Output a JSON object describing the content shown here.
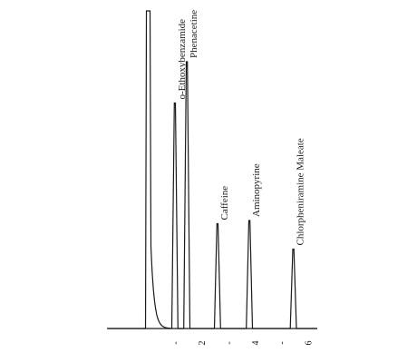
{
  "chart_data": {
    "type": "line",
    "title": "",
    "xlabel": "",
    "ylabel": "",
    "x_axis": {
      "range": [
        -1.6,
        6.3
      ],
      "ticks": [
        {
          "value": 1,
          "label": "-"
        },
        {
          "value": 2,
          "label": "2"
        },
        {
          "value": 3,
          "label": "-"
        },
        {
          "value": 4,
          "label": "4"
        },
        {
          "value": 5,
          "label": "-"
        },
        {
          "value": 6,
          "label": "6"
        }
      ]
    },
    "y_range": [
      0,
      1
    ],
    "grid": false,
    "legend": "none",
    "solvent_front": {
      "x": -0.05,
      "height": 1.0
    },
    "peaks": [
      {
        "name": "o-Ethoxybenzamide",
        "x": 0.95,
        "height": 0.71
      },
      {
        "name": "Phenacetine",
        "x": 1.4,
        "height": 0.84
      },
      {
        "name": "Caffeine",
        "x": 2.55,
        "height": 0.33
      },
      {
        "name": "Aminopyrine",
        "x": 3.75,
        "height": 0.34
      },
      {
        "name": "Chlorpheniramine Maleate",
        "x": 5.4,
        "height": 0.25
      }
    ]
  },
  "colors": {
    "trace": "#1a1a1a",
    "background": "#ffffff"
  }
}
